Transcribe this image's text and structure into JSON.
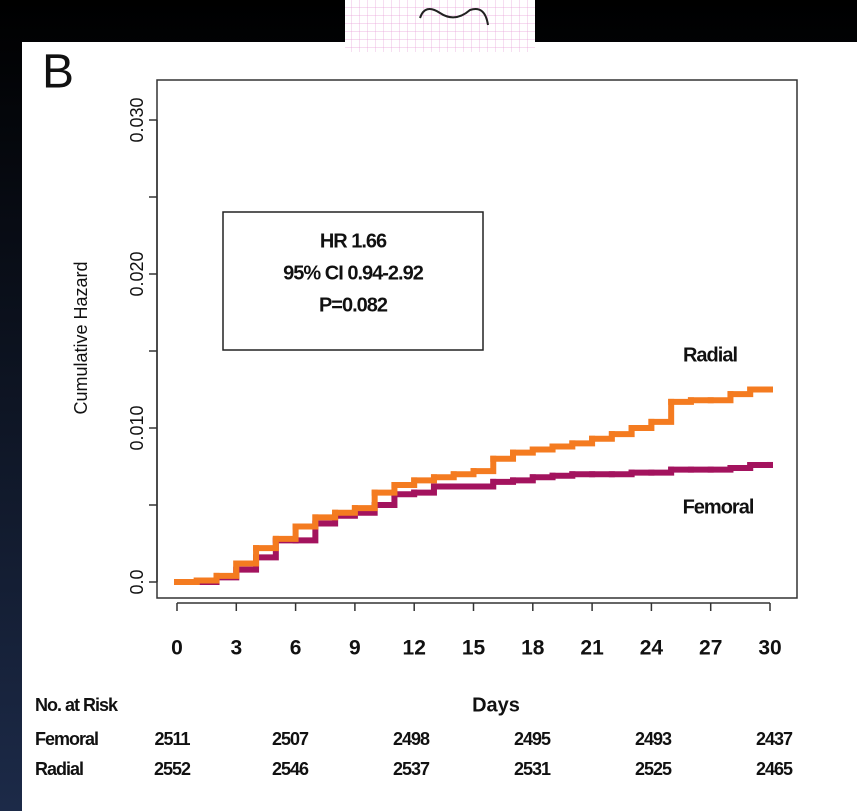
{
  "chart_data": {
    "type": "step",
    "panel_label": "B",
    "ylabel": "Cumulative Hazard",
    "xlabel": "Days",
    "annotation": [
      "HR 1.66",
      "95% CI 0.94-2.92",
      "P=0.082"
    ],
    "x": [
      0,
      1,
      2,
      3,
      4,
      5,
      6,
      7,
      8,
      9,
      10,
      11,
      12,
      13,
      14,
      15,
      16,
      17,
      18,
      19,
      20,
      21,
      22,
      23,
      24,
      25,
      26,
      27,
      28,
      29,
      30
    ],
    "series": [
      {
        "name": "Femoral",
        "color": "#a3135e",
        "values": [
          0,
          0,
          0.0003,
          0.0008,
          0.0016,
          0.0027,
          0.0027,
          0.0038,
          0.0043,
          0.0045,
          0.005,
          0.0057,
          0.0058,
          0.0062,
          0.0062,
          0.0062,
          0.0065,
          0.0066,
          0.0068,
          0.0069,
          0.007,
          0.007,
          0.007,
          0.0071,
          0.0071,
          0.0073,
          0.0073,
          0.0073,
          0.0074,
          0.0076,
          0.0076
        ]
      },
      {
        "name": "Radial",
        "color": "#f47b20",
        "values": [
          0,
          0.0001,
          0.0004,
          0.0012,
          0.0022,
          0.0028,
          0.0036,
          0.0042,
          0.0045,
          0.0048,
          0.0058,
          0.0063,
          0.0066,
          0.0068,
          0.007,
          0.0072,
          0.008,
          0.0084,
          0.0086,
          0.0088,
          0.009,
          0.0093,
          0.0096,
          0.01,
          0.0104,
          0.0117,
          0.0118,
          0.0118,
          0.0122,
          0.0125,
          0.0125
        ]
      }
    ],
    "xlim": [
      0,
      30
    ],
    "xticks": [
      0,
      3,
      6,
      9,
      12,
      15,
      18,
      21,
      24,
      27,
      30
    ],
    "ylim": [
      0,
      0.03
    ],
    "yticks": [
      {
        "value": 0,
        "label": "0.0"
      },
      {
        "value": 0.01,
        "label": "0.010"
      },
      {
        "value": 0.02,
        "label": "0.020"
      },
      {
        "value": 0.03,
        "label": "0.030"
      }
    ],
    "yminor": [
      0.005,
      0.015,
      0.025
    ],
    "risk_table": {
      "title": "No. at Risk",
      "rows": [
        {
          "name": "Femoral",
          "values": [
            "2511",
            "2507",
            "2498",
            "2495",
            "2493",
            "2437"
          ]
        },
        {
          "name": "Radial",
          "values": [
            "2552",
            "2546",
            "2537",
            "2531",
            "2525",
            "2465"
          ]
        }
      ]
    }
  }
}
